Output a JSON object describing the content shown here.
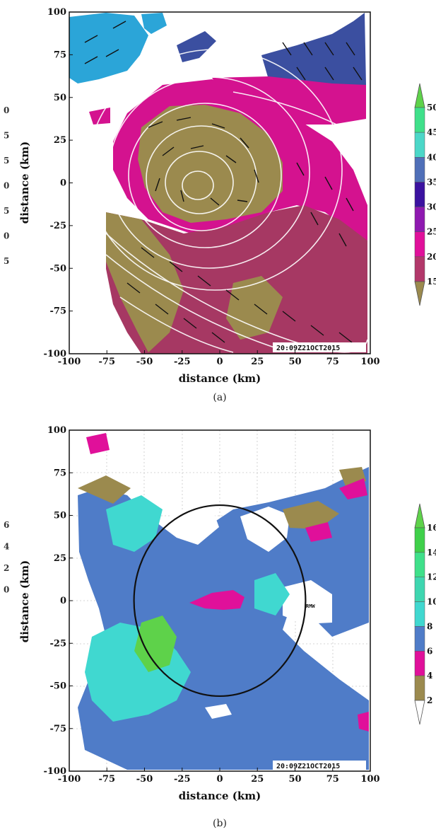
{
  "chart_data": [
    {
      "panel": "(a)",
      "type": "heatmap",
      "xlabel": "distance (km)",
      "ylabel": "distance (km)",
      "xlim": [
        -100,
        100
      ],
      "ylim": [
        -100,
        100
      ],
      "x_ticks": [
        "-100",
        "-75",
        "-50",
        "-25",
        "0",
        "25",
        "50",
        "75",
        "100"
      ],
      "y_ticks": [
        "100",
        "75",
        "50",
        "25",
        "0",
        "-25",
        "-50",
        "-75",
        "-100"
      ],
      "timestamp": "20:09Z21OCT2015",
      "colorbar_labels": [
        "15",
        "20",
        "25",
        "30",
        "35",
        "40",
        "45",
        "50"
      ],
      "colorbar_colors": [
        "#9b8a4e",
        "#b2386a",
        "#e0109a",
        "#8e19b0",
        "#3b12a0",
        "#4f6fb8",
        "#4bd7c8",
        "#3fe08a",
        "#5ed24a"
      ],
      "overlay": "wind vectors and streamlines",
      "partial_left_labels": [
        "0",
        "5",
        "5",
        "0",
        "5",
        "0",
        "5"
      ],
      "regions": [
        {
          "name": "north-west band",
          "value_class": 40,
          "color": "#2ba5d8"
        },
        {
          "name": "north-east band",
          "value_class": 35,
          "color": "#3b4fa0"
        },
        {
          "name": "eye region",
          "value_class": 15,
          "color": "#9b8a4e"
        },
        {
          "name": "outer rainband",
          "value_class": 25,
          "color": "#d4128f"
        },
        {
          "name": "south rainband",
          "value_class": 20,
          "color": "#a63863"
        }
      ]
    },
    {
      "panel": "(b)",
      "type": "heatmap",
      "xlabel": "distance (km)",
      "ylabel": "distance (km)",
      "xlim": [
        -100,
        100
      ],
      "ylim": [
        -100,
        100
      ],
      "x_ticks": [
        "-100",
        "-75",
        "-50",
        "-25",
        "0",
        "25",
        "50",
        "75",
        "100"
      ],
      "y_ticks": [
        "100",
        "75",
        "50",
        "25",
        "0",
        "-25",
        "-50",
        "-75",
        "-100"
      ],
      "timestamp": "20:09Z21OCT2015",
      "colorbar_labels": [
        "2",
        "4",
        "6",
        "8",
        "10",
        "12",
        "14",
        "16"
      ],
      "colorbar_colors": [
        "#ffffff",
        "#9b8a4e",
        "#e0109a",
        "#4f7cc8",
        "#40d8d0",
        "#3ed6b0",
        "#3fe08a",
        "#3fd04a",
        "#5ed24a"
      ],
      "annotation": "RMW",
      "rmw_circle": {
        "center_x": 0,
        "center_y": 0,
        "radius_x": 57,
        "radius_y": 56
      },
      "partial_left_labels": [
        "6",
        "4",
        "2",
        "0"
      ]
    }
  ],
  "captions": {
    "a": "(a)",
    "b": "(b)"
  }
}
